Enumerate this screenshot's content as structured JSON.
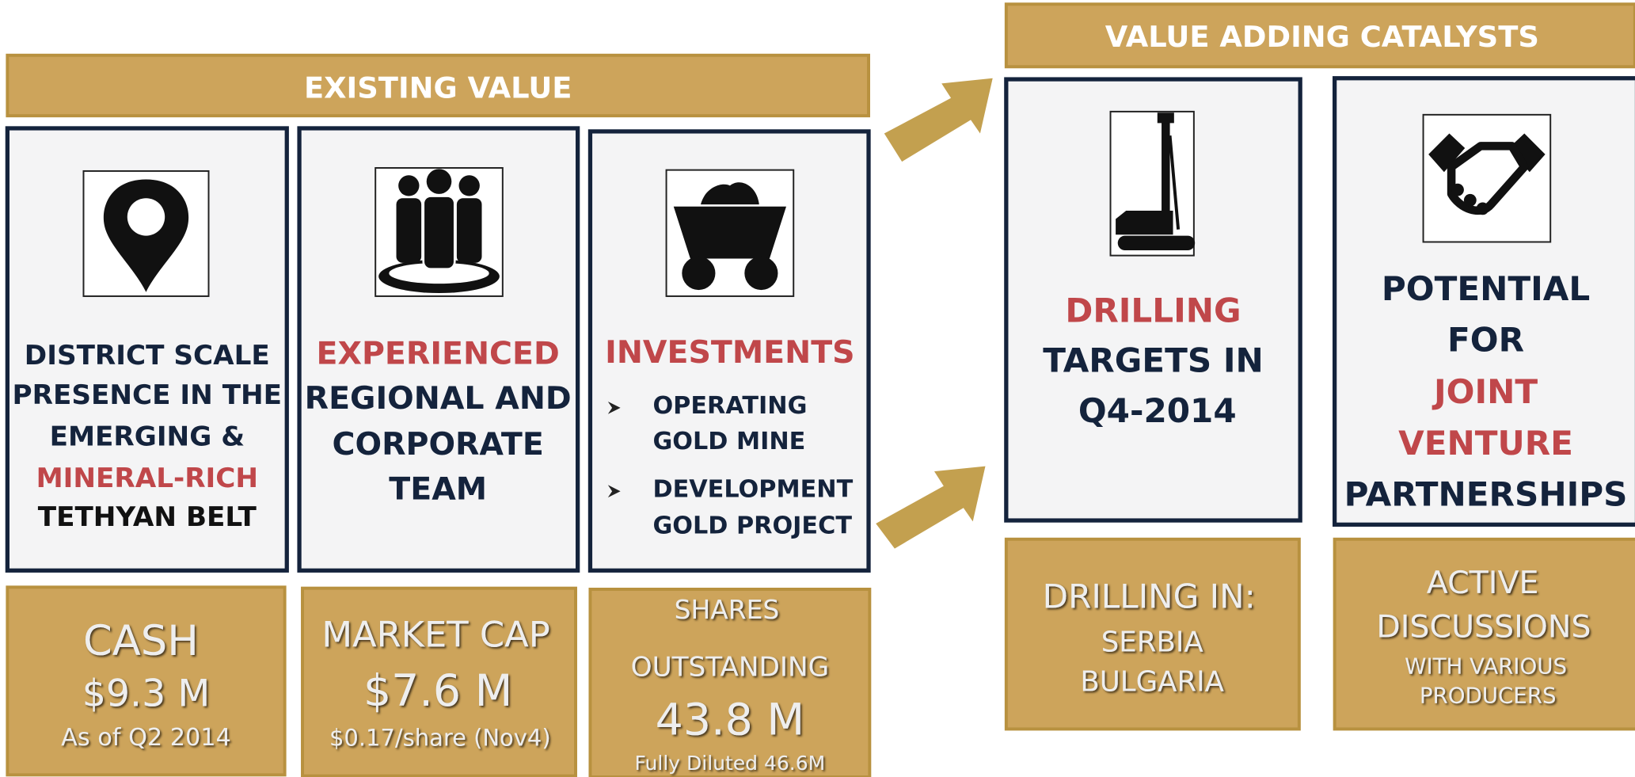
{
  "existing": {
    "header": "EXISTING VALUE",
    "cards": [
      {
        "lines": [
          "DISTRICT SCALE",
          "PRESENCE IN THE",
          "EMERGING &",
          "MINERAL-RICH",
          "TETHYAN BELT"
        ]
      },
      {
        "lines": [
          "EXPERIENCED",
          "REGIONAL AND",
          "CORPORATE",
          "TEAM"
        ]
      },
      {
        "title": "INVESTMENTS",
        "bullets": [
          [
            "OPERATING",
            "GOLD MINE"
          ],
          [
            "DEVELOPMENT",
            "GOLD PROJECT"
          ]
        ]
      }
    ],
    "stats": [
      {
        "lines": [
          "CASH",
          "$9.3 M",
          "As of Q2 2014"
        ]
      },
      {
        "lines": [
          "MARKET CAP",
          "$7.6 M",
          "$0.17/share (Nov4)"
        ]
      },
      {
        "lines": [
          "SHARES",
          "OUTSTANDING",
          "43.8 M",
          "Fully Diluted 46.6M"
        ]
      }
    ]
  },
  "catalysts": {
    "header": "VALUE ADDING CATALYSTS",
    "cards": [
      {
        "lines": [
          "DRILLING",
          "TARGETS IN",
          "Q4-2014"
        ]
      },
      {
        "lines": [
          "POTENTIAL",
          "FOR",
          "JOINT",
          "VENTURE",
          "PARTNERSHIPS"
        ]
      }
    ],
    "details": [
      {
        "lines": [
          "DRILLING IN:",
          "SERBIA",
          "BULGARIA"
        ]
      },
      {
        "lines": [
          "ACTIVE",
          "DISCUSSIONS",
          "WITH VARIOUS",
          "PRODUCERS"
        ]
      }
    ]
  }
}
